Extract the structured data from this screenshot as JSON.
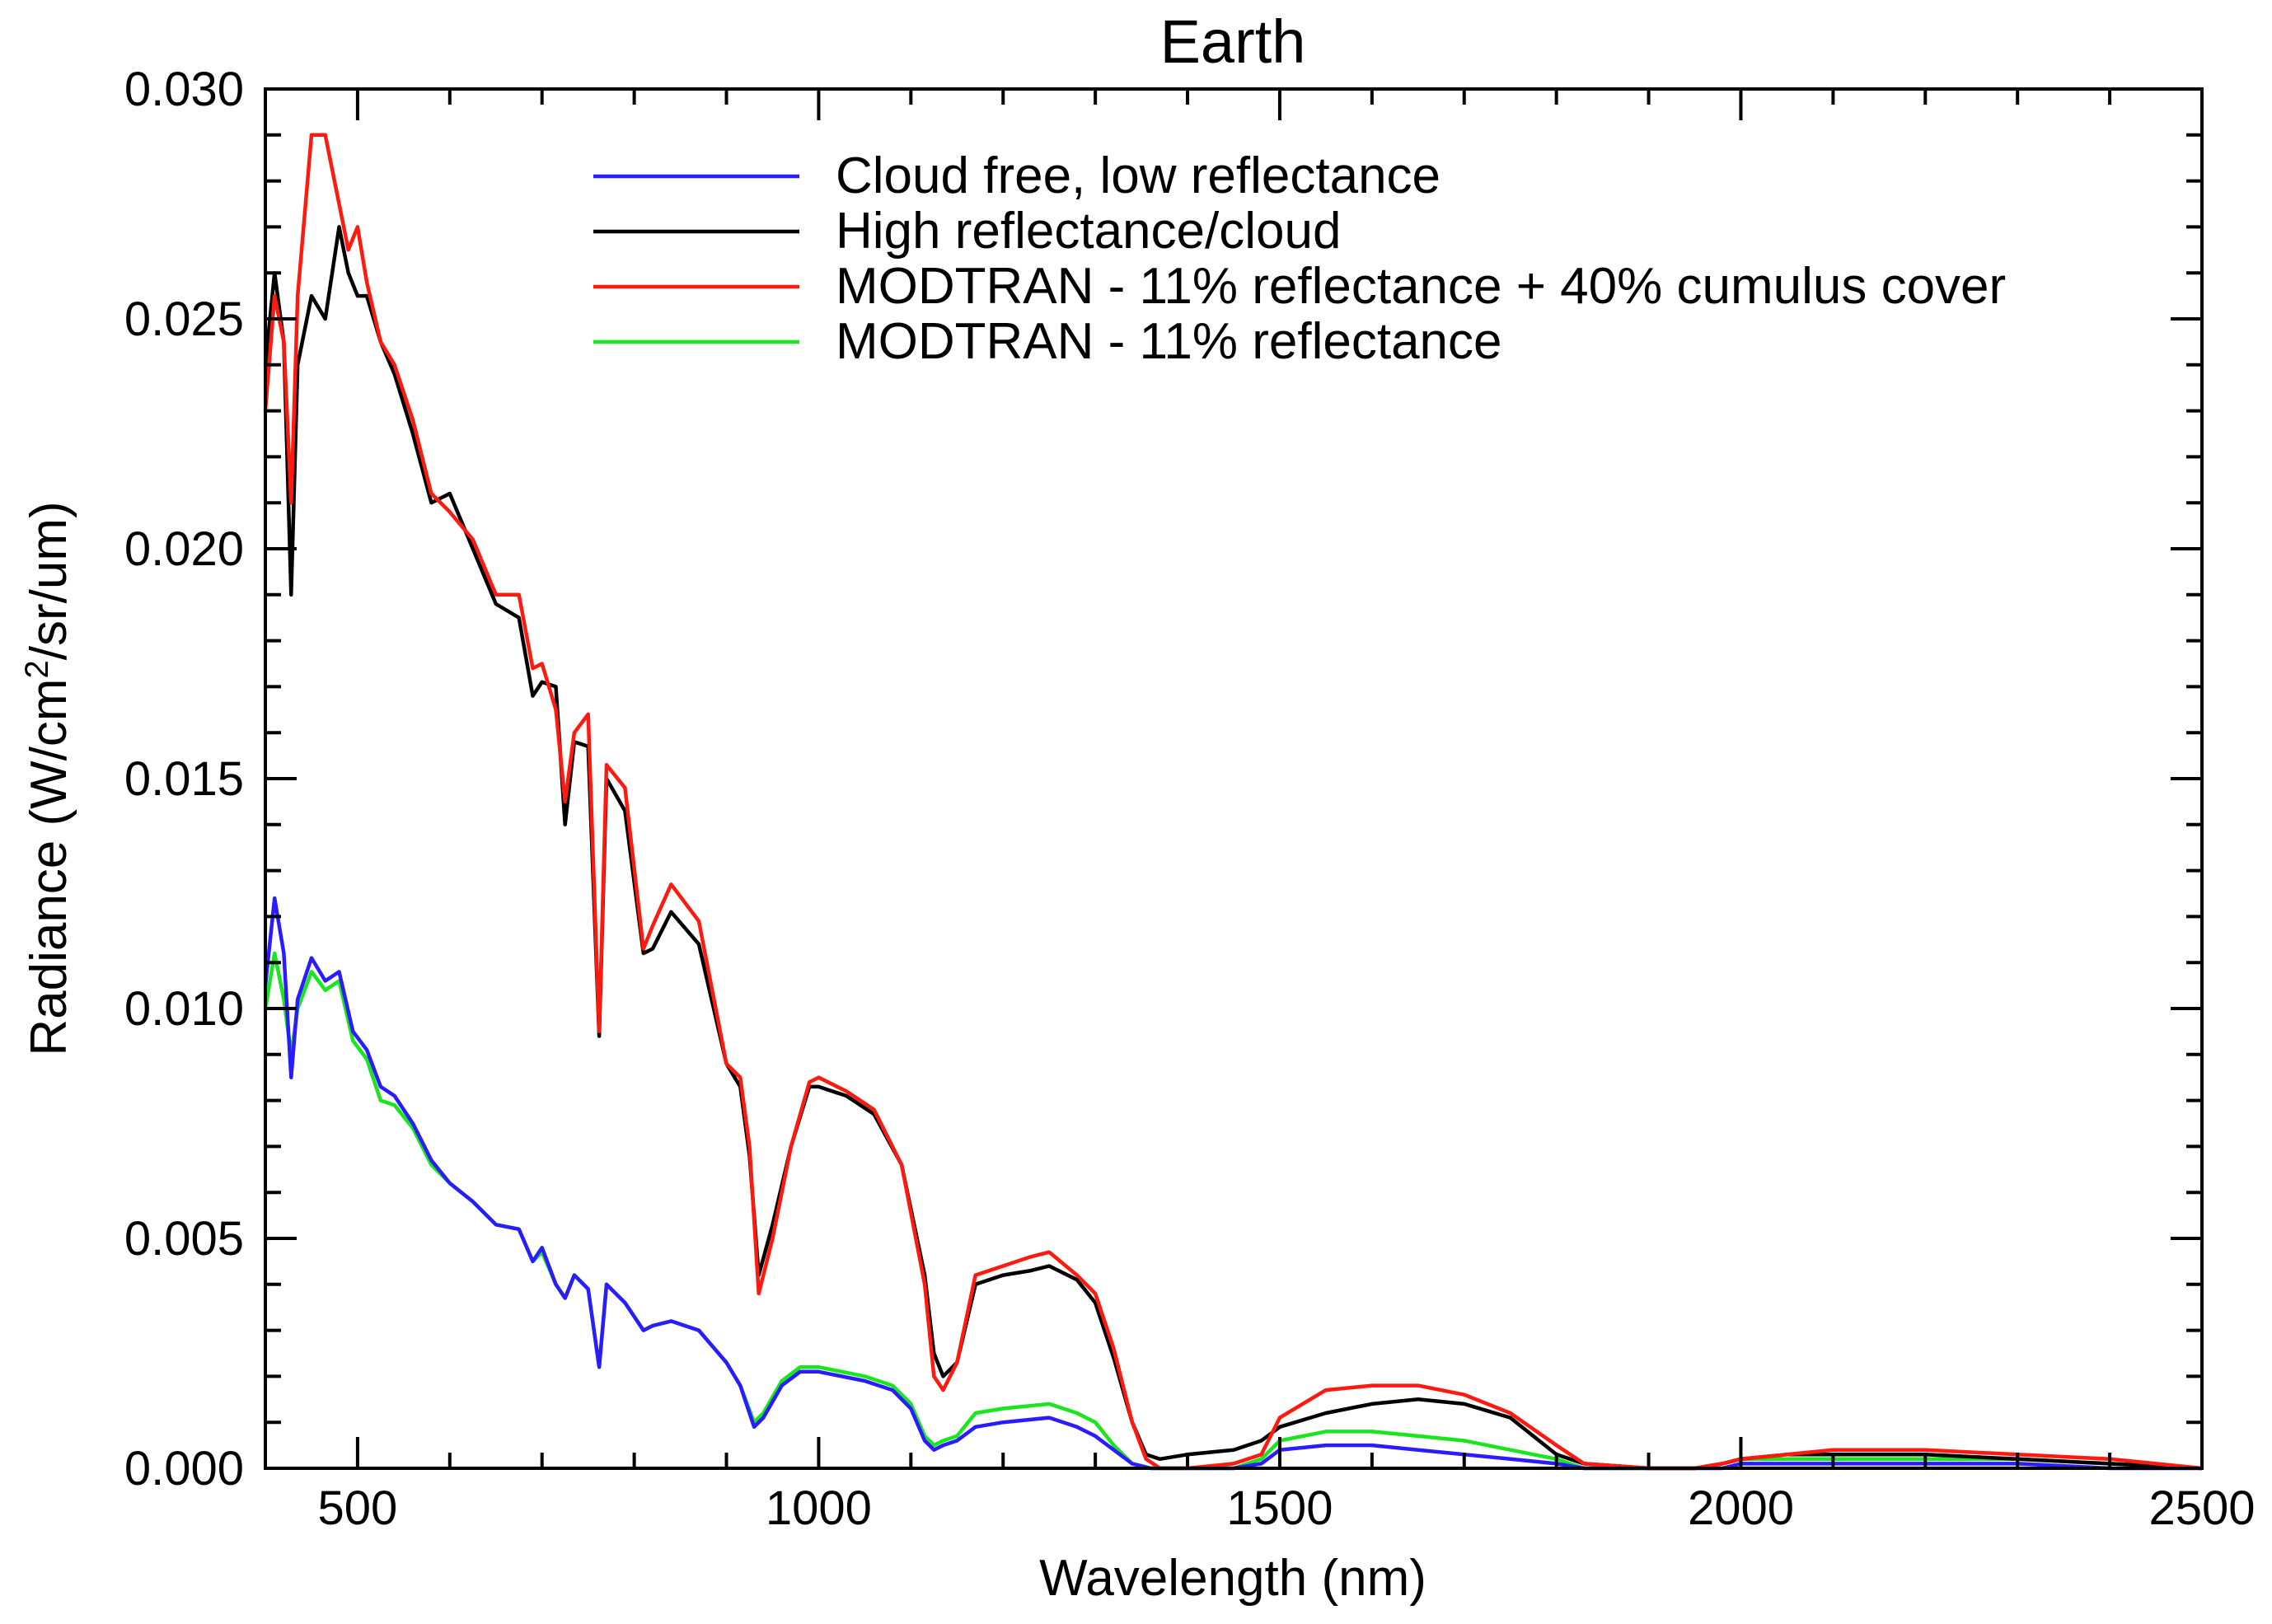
{
  "chart_data": {
    "type": "line",
    "title": "Earth",
    "xlabel": "Wavelength (nm)",
    "ylabel_parts": [
      "Radiance (W/cm",
      "2",
      "/sr/um)"
    ],
    "xlim": [
      400,
      2500
    ],
    "ylim": [
      0,
      0.03
    ],
    "xticks": [
      500,
      1000,
      1500,
      2000,
      2500
    ],
    "xtick_labels": [
      "500",
      "1000",
      "1500",
      "2000",
      "2500"
    ],
    "yticks": [
      0,
      0.005,
      0.01,
      0.015,
      0.02,
      0.025,
      0.03
    ],
    "ytick_labels": [
      "0.000",
      "0.005",
      "0.010",
      "0.015",
      "0.020",
      "0.025",
      "0.030"
    ],
    "legend_position": "top-center",
    "series": [
      {
        "name": "Cloud free, low reflectance",
        "color": "#2a1cff",
        "x": [
          400,
          410,
          420,
          428,
          435,
          450,
          465,
          480,
          495,
          510,
          525,
          540,
          560,
          580,
          600,
          625,
          650,
          675,
          690,
          700,
          715,
          725,
          735,
          750,
          762,
          770,
          790,
          810,
          820,
          840,
          870,
          900,
          915,
          930,
          940,
          960,
          980,
          1000,
          1050,
          1080,
          1100,
          1115,
          1125,
          1135,
          1150,
          1170,
          1200,
          1250,
          1280,
          1300,
          1320,
          1340,
          1360,
          1400,
          1450,
          1480,
          1500,
          1550,
          1600,
          1650,
          1700,
          1750,
          1800,
          1830,
          1900,
          1950,
          1980,
          2000,
          2050,
          2100,
          2200,
          2300,
          2400,
          2500
        ],
        "y": [
          0.0105,
          0.0124,
          0.0112,
          0.0085,
          0.0102,
          0.0111,
          0.0106,
          0.0108,
          0.0095,
          0.0091,
          0.0083,
          0.0081,
          0.0075,
          0.0067,
          0.0062,
          0.0058,
          0.0053,
          0.0052,
          0.0045,
          0.0048,
          0.004,
          0.0037,
          0.0042,
          0.0039,
          0.0022,
          0.004,
          0.0036,
          0.003,
          0.0031,
          0.0032,
          0.003,
          0.0023,
          0.0018,
          0.0009,
          0.0011,
          0.0018,
          0.0021,
          0.0021,
          0.0019,
          0.0017,
          0.0013,
          0.0006,
          0.0004,
          0.0005,
          0.0006,
          0.0009,
          0.001,
          0.0011,
          0.0009,
          0.0007,
          0.0004,
          0.0001,
          0.0,
          0.0,
          0.0,
          0.0001,
          0.0004,
          0.0005,
          0.0005,
          0.0004,
          0.0003,
          0.0002,
          0.0001,
          0.0,
          0.0,
          0.0,
          0.0,
          0.0001,
          0.0001,
          0.0001,
          0.0001,
          0.0001,
          0.0,
          0.0
        ]
      },
      {
        "name": "High reflectance/cloud",
        "color": "#000000",
        "x": [
          400,
          410,
          420,
          428,
          435,
          450,
          465,
          480,
          490,
          500,
          510,
          525,
          540,
          560,
          580,
          600,
          625,
          650,
          675,
          690,
          700,
          715,
          725,
          735,
          750,
          762,
          770,
          790,
          810,
          820,
          840,
          870,
          900,
          915,
          925,
          935,
          950,
          970,
          990,
          1000,
          1030,
          1060,
          1090,
          1115,
          1125,
          1135,
          1150,
          1170,
          1200,
          1230,
          1250,
          1280,
          1300,
          1320,
          1340,
          1355,
          1370,
          1400,
          1450,
          1480,
          1500,
          1550,
          1600,
          1650,
          1700,
          1750,
          1800,
          1830,
          1900,
          1950,
          1980,
          2000,
          2050,
          2100,
          2200,
          2300,
          2400,
          2500
        ],
        "y": [
          0.024,
          0.026,
          0.0245,
          0.019,
          0.024,
          0.0255,
          0.025,
          0.027,
          0.026,
          0.0255,
          0.0255,
          0.0245,
          0.0238,
          0.0225,
          0.021,
          0.0212,
          0.02,
          0.0188,
          0.0185,
          0.0168,
          0.0171,
          0.017,
          0.014,
          0.0158,
          0.0157,
          0.0094,
          0.015,
          0.0143,
          0.0112,
          0.0113,
          0.0121,
          0.0114,
          0.0088,
          0.0083,
          0.0068,
          0.0042,
          0.0053,
          0.007,
          0.0083,
          0.0083,
          0.0081,
          0.0077,
          0.0066,
          0.0042,
          0.0025,
          0.002,
          0.0023,
          0.004,
          0.0042,
          0.0043,
          0.0044,
          0.0041,
          0.0036,
          0.0024,
          0.001,
          0.0003,
          0.0002,
          0.0003,
          0.0004,
          0.0006,
          0.0009,
          0.0012,
          0.0014,
          0.0015,
          0.0014,
          0.0011,
          0.0003,
          0.0001,
          0.0,
          0.0,
          0.0001,
          0.0002,
          0.0003,
          0.0003,
          0.0003,
          0.0002,
          0.0001,
          0.0
        ]
      },
      {
        "name": "MODTRAN - 11% reflectance + 40% cumulus cover",
        "color": "#ff1a10",
        "x": [
          400,
          410,
          420,
          428,
          435,
          450,
          465,
          480,
          490,
          500,
          510,
          525,
          540,
          560,
          580,
          600,
          625,
          650,
          675,
          690,
          700,
          715,
          725,
          735,
          750,
          762,
          770,
          790,
          810,
          820,
          840,
          870,
          900,
          915,
          925,
          935,
          950,
          970,
          990,
          1000,
          1030,
          1060,
          1090,
          1115,
          1125,
          1135,
          1150,
          1170,
          1200,
          1230,
          1250,
          1280,
          1300,
          1320,
          1340,
          1355,
          1370,
          1400,
          1450,
          1480,
          1500,
          1550,
          1600,
          1650,
          1700,
          1750,
          1800,
          1830,
          1900,
          1950,
          1980,
          2000,
          2050,
          2100,
          2200,
          2300,
          2400,
          2500
        ],
        "y": [
          0.023,
          0.0255,
          0.0245,
          0.021,
          0.0255,
          0.029,
          0.029,
          0.0275,
          0.0265,
          0.027,
          0.0258,
          0.0245,
          0.024,
          0.0228,
          0.0212,
          0.0208,
          0.0202,
          0.019,
          0.019,
          0.0174,
          0.0175,
          0.0165,
          0.0145,
          0.016,
          0.0164,
          0.0095,
          0.0153,
          0.0148,
          0.0113,
          0.0118,
          0.0127,
          0.0119,
          0.0088,
          0.0085,
          0.007,
          0.0038,
          0.005,
          0.007,
          0.0084,
          0.0085,
          0.0082,
          0.0078,
          0.0066,
          0.004,
          0.002,
          0.0017,
          0.0023,
          0.0042,
          0.0044,
          0.0046,
          0.0047,
          0.0042,
          0.0038,
          0.0026,
          0.001,
          0.0002,
          0.0,
          0.0,
          0.0001,
          0.0003,
          0.0011,
          0.0017,
          0.0018,
          0.0018,
          0.0016,
          0.0012,
          0.0005,
          0.0001,
          0.0,
          0.0,
          0.0001,
          0.0002,
          0.0003,
          0.0004,
          0.0004,
          0.0003,
          0.0002,
          0.0
        ]
      },
      {
        "name": "MODTRAN - 11% reflectance",
        "color": "#19e61e",
        "x": [
          400,
          410,
          420,
          428,
          435,
          450,
          465,
          480,
          495,
          510,
          525,
          540,
          560,
          580,
          600,
          625,
          650,
          675,
          690,
          700,
          715,
          725,
          735,
          750,
          762,
          770,
          790,
          810,
          820,
          840,
          870,
          900,
          915,
          930,
          940,
          960,
          980,
          1000,
          1050,
          1080,
          1100,
          1115,
          1125,
          1135,
          1150,
          1170,
          1200,
          1250,
          1280,
          1300,
          1320,
          1340,
          1360,
          1400,
          1450,
          1480,
          1500,
          1550,
          1600,
          1650,
          1700,
          1750,
          1800,
          1830,
          1900,
          1950,
          1980,
          2000,
          2050,
          2100,
          2200,
          2300,
          2400,
          2500
        ],
        "y": [
          0.01,
          0.0112,
          0.0102,
          0.009,
          0.01,
          0.0108,
          0.0104,
          0.0106,
          0.0093,
          0.0089,
          0.008,
          0.0079,
          0.0074,
          0.0066,
          0.0062,
          0.0058,
          0.0053,
          0.0052,
          0.0045,
          0.0047,
          0.004,
          0.0037,
          0.0042,
          0.0039,
          0.0022,
          0.004,
          0.0036,
          0.003,
          0.0031,
          0.0032,
          0.003,
          0.0023,
          0.0018,
          0.001,
          0.0012,
          0.0019,
          0.0022,
          0.0022,
          0.002,
          0.0018,
          0.0014,
          0.0007,
          0.0005,
          0.0006,
          0.0007,
          0.0012,
          0.0013,
          0.0014,
          0.0012,
          0.001,
          0.0005,
          0.0001,
          0.0,
          0.0,
          0.0,
          0.0002,
          0.0006,
          0.0008,
          0.0008,
          0.0007,
          0.0006,
          0.0004,
          0.0002,
          0.0,
          0.0,
          0.0,
          0.0001,
          0.0002,
          0.0002,
          0.0002,
          0.0002,
          0.0002,
          0.0001,
          0.0
        ]
      }
    ]
  }
}
